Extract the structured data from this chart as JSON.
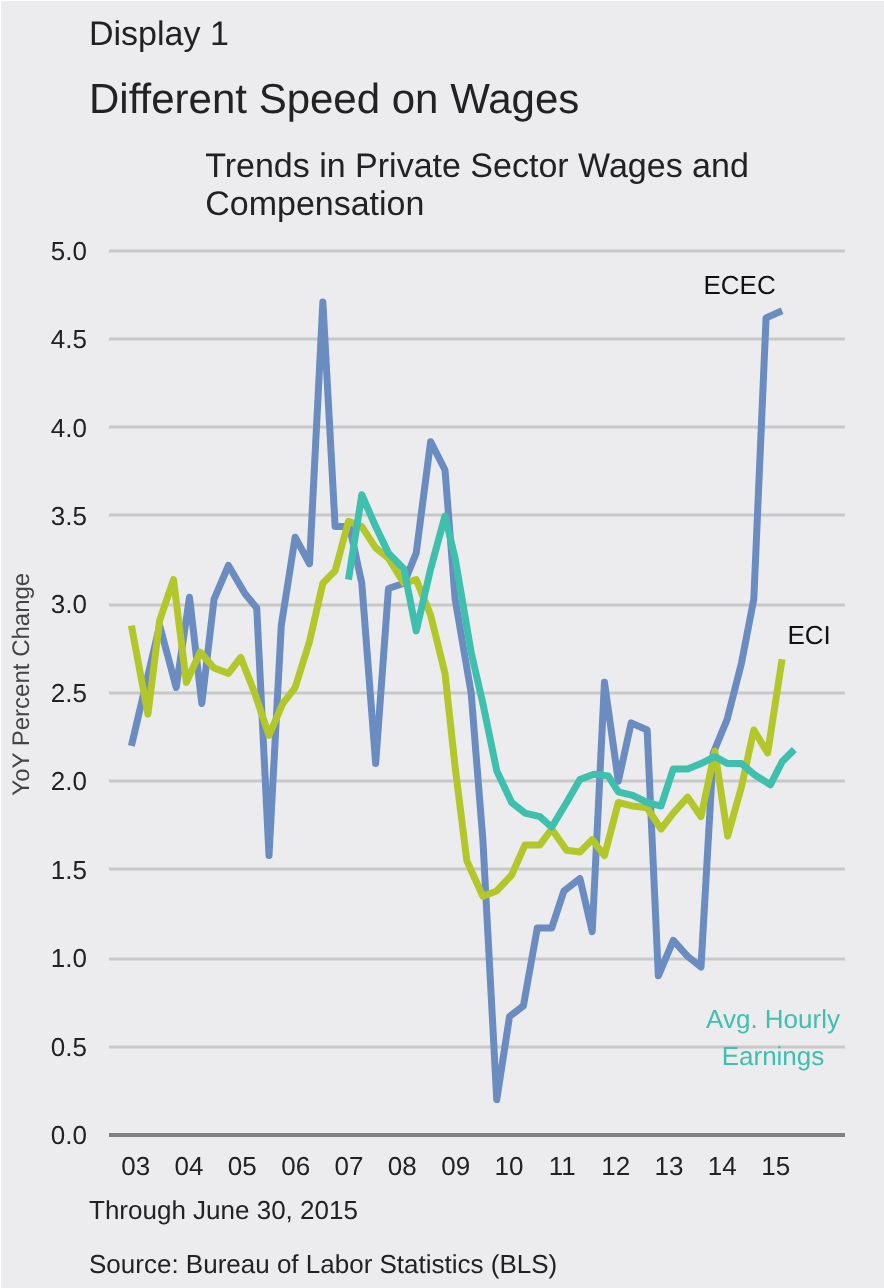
{
  "chart_data": {
    "type": "line",
    "title": "Different Speed on Wages",
    "subtitle": "Trends in Private Sector Wages and Compensation",
    "ylabel": "YoY Percent Change",
    "annotations": [
      "Display 1",
      "Through June 30, 2015",
      "Source: Bureau of Labor Statistics (BLS)"
    ],
    "xlim": [
      2002.5,
      2016.3
    ],
    "ylim": [
      0,
      5.1
    ],
    "xticks": [
      {
        "value": 2003,
        "label": "03"
      },
      {
        "value": 2004,
        "label": "04"
      },
      {
        "value": 2005,
        "label": "05"
      },
      {
        "value": 2006,
        "label": "06"
      },
      {
        "value": 2007,
        "label": "07"
      },
      {
        "value": 2008,
        "label": "08"
      },
      {
        "value": 2009,
        "label": "09"
      },
      {
        "value": 2010,
        "label": "10"
      },
      {
        "value": 2011,
        "label": "11"
      },
      {
        "value": 2012,
        "label": "12"
      },
      {
        "value": 2013,
        "label": "13"
      },
      {
        "value": 2014,
        "label": "14"
      },
      {
        "value": 2015,
        "label": "15"
      }
    ],
    "yticks": [
      {
        "value": 0,
        "label": "0.0"
      },
      {
        "value": 0.5,
        "label": "0.5"
      },
      {
        "value": 1,
        "label": "1.0"
      },
      {
        "value": 1.5,
        "label": "1.5"
      },
      {
        "value": 2,
        "label": "2.0"
      },
      {
        "value": 2.5,
        "label": "2.5"
      },
      {
        "value": 3,
        "label": "3.0"
      },
      {
        "value": 3.5,
        "label": "3.5"
      },
      {
        "value": 4,
        "label": "4.0"
      },
      {
        "value": 4.5,
        "label": "4.5"
      },
      {
        "value": 5,
        "label": "5.0"
      }
    ],
    "grid": "y",
    "marker": "none",
    "line_style": "solid",
    "series": [
      {
        "name": "ECEC",
        "color": "#6a8cc0",
        "x": [
          2002.92,
          2003.45,
          2003.76,
          2004.01,
          2004.24,
          2004.47,
          2004.74,
          2005.05,
          2005.27,
          2005.5,
          2005.73,
          2005.99,
          2006.26,
          2006.51,
          2006.74,
          2007.01,
          2007.24,
          2007.5,
          2007.74,
          2008.03,
          2008.26,
          2008.53,
          2008.8,
          2008.99,
          2009.29,
          2009.51,
          2009.77,
          2010.01,
          2010.27,
          2010.53,
          2010.8,
          2011.03,
          2011.33,
          2011.56,
          2011.79,
          2012.05,
          2012.29,
          2012.59,
          2012.8,
          2013.08,
          2013.35,
          2013.6,
          2013.83,
          2014.09,
          2014.36,
          2014.59,
          2014.82,
          2015.12
        ],
        "values": [
          2.2,
          2.88,
          2.53,
          3.04,
          2.44,
          3.03,
          3.22,
          3.06,
          2.98,
          1.58,
          2.88,
          3.38,
          3.23,
          4.71,
          3.44,
          3.44,
          3.12,
          2.1,
          3.09,
          3.12,
          3.29,
          3.92,
          3.76,
          3.03,
          2.5,
          1.67,
          0.2,
          0.67,
          0.73,
          1.17,
          1.17,
          1.38,
          1.45,
          1.15,
          2.56,
          2.0,
          2.33,
          2.29,
          0.9,
          1.1,
          1.01,
          0.95,
          2.16,
          2.35,
          2.67,
          3.03,
          4.62,
          4.66
        ]
      },
      {
        "name": "ECI",
        "color": "#b3c72a",
        "x": [
          2002.92,
          2003.23,
          2003.45,
          2003.71,
          2003.95,
          2004.21,
          2004.47,
          2004.74,
          2004.97,
          2005.23,
          2005.5,
          2005.76,
          2005.99,
          2006.26,
          2006.51,
          2006.74,
          2006.99,
          2007.24,
          2007.5,
          2007.74,
          2008.03,
          2008.26,
          2008.53,
          2008.8,
          2008.99,
          2009.21,
          2009.51,
          2009.77,
          2010.05,
          2010.3,
          2010.58,
          2010.8,
          2011.08,
          2011.33,
          2011.56,
          2011.79,
          2012.05,
          2012.32,
          2012.59,
          2012.85,
          2013.08,
          2013.35,
          2013.6,
          2013.86,
          2014.1,
          2014.36,
          2014.59,
          2014.85,
          2015.12
        ],
        "values": [
          2.88,
          2.38,
          2.91,
          3.14,
          2.56,
          2.73,
          2.64,
          2.61,
          2.7,
          2.5,
          2.26,
          2.44,
          2.53,
          2.79,
          3.12,
          3.19,
          3.47,
          3.44,
          3.32,
          3.26,
          3.12,
          3.14,
          2.94,
          2.61,
          2.08,
          1.55,
          1.35,
          1.38,
          1.47,
          1.64,
          1.64,
          1.73,
          1.61,
          1.6,
          1.67,
          1.58,
          1.88,
          1.86,
          1.85,
          1.73,
          1.82,
          1.91,
          1.8,
          2.17,
          1.69,
          1.97,
          2.29,
          2.16,
          2.69
        ]
      },
      {
        "name": "Avg. Hourly Earnings",
        "color": "#3fbfae",
        "x": [
          2006.99,
          2007.24,
          2007.5,
          2007.74,
          2008.03,
          2008.26,
          2008.53,
          2008.8,
          2008.99,
          2009.29,
          2009.51,
          2009.77,
          2010.05,
          2010.3,
          2010.58,
          2010.8,
          2011.08,
          2011.33,
          2011.59,
          2011.86,
          2012.05,
          2012.32,
          2012.59,
          2012.85,
          2013.08,
          2013.35,
          2013.6,
          2013.86,
          2014.1,
          2014.36,
          2014.59,
          2014.9,
          2015.12,
          2015.35
        ],
        "values": [
          3.14,
          3.62,
          3.44,
          3.29,
          3.2,
          2.85,
          3.2,
          3.5,
          3.26,
          2.73,
          2.44,
          2.06,
          1.88,
          1.82,
          1.8,
          1.74,
          1.88,
          2.01,
          2.04,
          2.03,
          1.94,
          1.92,
          1.88,
          1.86,
          2.07,
          2.07,
          2.1,
          2.14,
          2.1,
          2.1,
          2.04,
          1.98,
          2.11,
          2.18
        ]
      }
    ]
  }
}
